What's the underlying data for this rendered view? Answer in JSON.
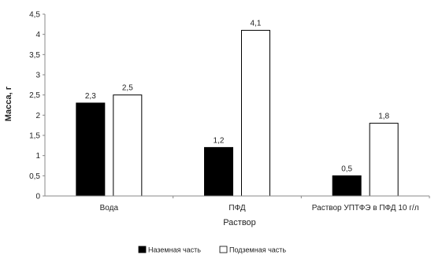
{
  "chart_data": {
    "type": "bar",
    "categories": [
      "Вода",
      "ПФД",
      "Раствор УПТФЭ в ПФД 10 г/л"
    ],
    "series": [
      {
        "name": "Наземная часть",
        "values": [
          2.3,
          1.2,
          0.5
        ],
        "labels": [
          "2,3",
          "1,2",
          "0,5"
        ],
        "color": "#000000"
      },
      {
        "name": "Подземная часть",
        "values": [
          2.5,
          4.1,
          1.8
        ],
        "labels": [
          "2,5",
          "4,1",
          "1,8"
        ],
        "color": "#ffffff"
      }
    ],
    "yticks": [
      "0",
      "0,5",
      "1",
      "1,5",
      "2",
      "2,5",
      "3",
      "3,5",
      "4",
      "4,5"
    ],
    "ylim": [
      0,
      4.5
    ],
    "xlabel": "Раствор",
    "ylabel": "Масса, г",
    "grid": false,
    "legend_position": "bottom"
  }
}
